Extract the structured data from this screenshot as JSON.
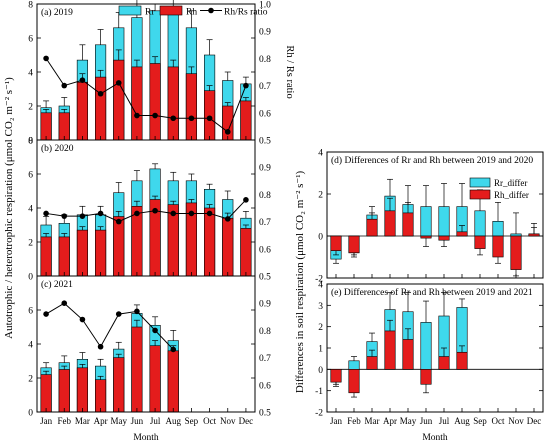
{
  "colors": {
    "rr": "#3fd8ec",
    "rh": "#e41c1c",
    "ratio": "#000000",
    "axis": "#000000"
  },
  "chart_data": [
    {
      "id": "a",
      "type": "bar",
      "panel_label": "(a) 2019",
      "categories": [
        "Jan",
        "Feb",
        "Mar",
        "Apr",
        "May",
        "Jun",
        "Jul",
        "Aug",
        "Sep",
        "Oct",
        "Nov",
        "Dec"
      ],
      "ylim": [
        0,
        8
      ],
      "yticks": [
        "0",
        "2",
        "4",
        "6",
        "8"
      ],
      "ratio_ylim": [
        0.5,
        1.0
      ],
      "ratio_yticks": [
        "0.5",
        "0.6",
        "0.7",
        "0.8",
        "0.9",
        "1.0"
      ],
      "series": [
        {
          "name": "Rr",
          "values": [
            1.9,
            2.0,
            4.7,
            5.6,
            6.6,
            7.2,
            7.6,
            7.6,
            6.6,
            5.0,
            3.5,
            3.3
          ],
          "errors": [
            0.4,
            0.5,
            0.9,
            0.9,
            0.9,
            1.2,
            0.4,
            0.8,
            1.0,
            0.9,
            0.5,
            0.4
          ]
        },
        {
          "name": "Rh",
          "values": [
            1.6,
            1.6,
            3.4,
            3.7,
            4.7,
            4.3,
            4.5,
            4.3,
            3.9,
            2.9,
            2.0,
            2.3
          ],
          "errors": [
            0.2,
            0.2,
            0.5,
            0.4,
            0.6,
            0.4,
            0.4,
            0.4,
            0.4,
            0.3,
            0.2,
            0.2
          ]
        },
        {
          "name": "Rh/Rs ratio",
          "values": [
            0.8,
            0.7,
            0.72,
            0.67,
            0.71,
            0.59,
            0.59,
            0.58,
            0.58,
            0.58,
            0.53,
            0.7
          ]
        }
      ],
      "legend": [
        "Rr",
        "Rh",
        "Rh/Rs ratio"
      ],
      "right_ylabel": "Rh / Rs ratio"
    },
    {
      "id": "b",
      "type": "bar",
      "panel_label": "(b) 2020",
      "categories": [
        "Jan",
        "Feb",
        "Mar",
        "Apr",
        "May",
        "Jun",
        "Jul",
        "Aug",
        "Sep",
        "Oct",
        "Nov",
        "Dec"
      ],
      "ylim": [
        0,
        8
      ],
      "yticks": [
        "0",
        "2",
        "4",
        "6",
        "8"
      ],
      "ratio_ylim": [
        0.5,
        1.0
      ],
      "ratio_yticks": [
        "0.5",
        "0.6",
        "0.7",
        "0.8",
        "0.9"
      ],
      "series": [
        {
          "name": "Rr",
          "values": [
            3.0,
            3.1,
            3.6,
            3.6,
            4.9,
            5.6,
            6.3,
            5.6,
            5.6,
            5.1,
            4.5,
            3.4
          ],
          "errors": [
            0.5,
            0.5,
            0.5,
            0.5,
            0.6,
            0.6,
            0.3,
            0.5,
            0.4,
            0.3,
            0.5,
            0.4
          ]
        },
        {
          "name": "Rh",
          "values": [
            2.3,
            2.3,
            2.7,
            2.7,
            3.5,
            4.1,
            4.5,
            4.2,
            4.3,
            4.0,
            3.4,
            2.8
          ],
          "errors": [
            0.2,
            0.2,
            0.2,
            0.2,
            0.3,
            0.3,
            0.2,
            0.2,
            0.2,
            0.2,
            0.3,
            0.2
          ]
        },
        {
          "name": "Rh/Rs ratio",
          "values": [
            0.73,
            0.72,
            0.72,
            0.73,
            0.7,
            0.73,
            0.74,
            0.73,
            0.73,
            0.73,
            0.71,
            0.78
          ]
        }
      ]
    },
    {
      "id": "c",
      "type": "bar",
      "panel_label": "(c) 2021",
      "categories": [
        "Jan",
        "Feb",
        "Mar",
        "Apr",
        "May",
        "Jun",
        "Jul",
        "Aug",
        "Sep",
        "Oct",
        "Nov",
        "Dec"
      ],
      "xlabel": "Month",
      "ylim": [
        0,
        8
      ],
      "yticks": [
        "0",
        "2",
        "4",
        "6"
      ],
      "ratio_ylim": [
        0.5,
        1.0
      ],
      "ratio_yticks": [
        "0.5",
        "0.6",
        "0.7",
        "0.8",
        "0.9"
      ],
      "series": [
        {
          "name": "Rr",
          "values": [
            2.6,
            2.9,
            3.1,
            2.7,
            3.7,
            5.8,
            5.1,
            4.2,
            null,
            null,
            null,
            null
          ],
          "errors": [
            0.3,
            0.4,
            0.4,
            0.4,
            0.4,
            0.5,
            0.5,
            0.6,
            null,
            null,
            null,
            null
          ]
        },
        {
          "name": "Rh",
          "values": [
            2.2,
            2.5,
            2.6,
            1.9,
            3.2,
            5.0,
            3.9,
            3.6,
            null,
            null,
            null,
            null
          ],
          "errors": [
            0.2,
            0.2,
            0.2,
            0.2,
            0.2,
            0.4,
            0.3,
            0.3,
            null,
            null,
            null,
            null
          ]
        },
        {
          "name": "Rh/Rs ratio",
          "values": [
            0.86,
            0.9,
            0.84,
            0.74,
            0.86,
            0.87,
            0.8,
            0.73,
            null,
            null,
            null,
            null
          ]
        }
      ]
    },
    {
      "id": "d",
      "type": "bar",
      "panel_label": "(d) Differences of Rr and Rh between 2019 and 2020",
      "categories": [
        "Jan",
        "Feb",
        "Mar",
        "Apr",
        "May",
        "Jun",
        "Jul",
        "Aug",
        "Sep",
        "Oct",
        "Nov",
        "Dec"
      ],
      "ylim": [
        -2,
        4
      ],
      "yticks": [
        "-2",
        "0",
        "2",
        "4"
      ],
      "series": [
        {
          "name": "Rr_differ",
          "values": [
            -1.1,
            -0.8,
            1.0,
            1.9,
            1.5,
            1.4,
            1.4,
            1.4,
            1.2,
            0.7,
            0.1,
            0.1
          ],
          "errors": [
            0.2,
            0.2,
            0.4,
            0.8,
            0.9,
            1.0,
            1.1,
            1.1,
            1.0,
            0.9,
            1.0,
            0.5
          ]
        },
        {
          "name": "Rh_differ",
          "values": [
            -0.7,
            -0.8,
            0.8,
            1.2,
            1.1,
            -0.1,
            -0.2,
            0.2,
            -0.6,
            -1.0,
            -1.6,
            0.1
          ],
          "errors": [
            0.2,
            0.1,
            0.3,
            0.6,
            0.5,
            0.4,
            0.3,
            0.3,
            0.3,
            0.3,
            0.3,
            0.3
          ]
        }
      ],
      "legend": [
        "Rr_differ",
        "Rh_differ"
      ]
    },
    {
      "id": "e",
      "type": "bar",
      "panel_label": "(e) Differences of Rr and Rh between 2019 and 2021",
      "categories": [
        "Jan",
        "Feb",
        "Mar",
        "Apr",
        "May",
        "Jun",
        "Jul",
        "Aug",
        "Sep",
        "Oct",
        "Nov",
        "Dec"
      ],
      "xlabel": "Month",
      "ylim": [
        -2,
        4
      ],
      "yticks": [
        "-2",
        "-1",
        "0",
        "1",
        "2",
        "3",
        "4"
      ],
      "series": [
        {
          "name": "Rr_differ",
          "values": [
            -0.5,
            0.4,
            1.3,
            2.8,
            2.7,
            2.2,
            2.5,
            2.9,
            null,
            null,
            null,
            null
          ],
          "errors": [
            0.2,
            0.2,
            0.4,
            0.8,
            0.9,
            1.0,
            1.1,
            0.4,
            null,
            null,
            null,
            null
          ]
        },
        {
          "name": "Rh_differ",
          "values": [
            -0.6,
            -1.1,
            0.6,
            1.8,
            1.4,
            -0.7,
            0.6,
            0.8,
            null,
            null,
            null,
            null
          ],
          "errors": [
            0.2,
            0.2,
            0.3,
            0.5,
            0.5,
            0.4,
            0.4,
            0.3,
            null,
            null,
            null,
            null
          ]
        }
      ]
    }
  ],
  "left_ylabel": "Autotrophic / heterotrophic respiration (μmol CO₂ m⁻² s⁻¹)",
  "right_ylabel": "Rh / Rs ratio",
  "diff_ylabel": "Differences in soil respiration (μmol CO₂ m⁻² s⁻¹)"
}
